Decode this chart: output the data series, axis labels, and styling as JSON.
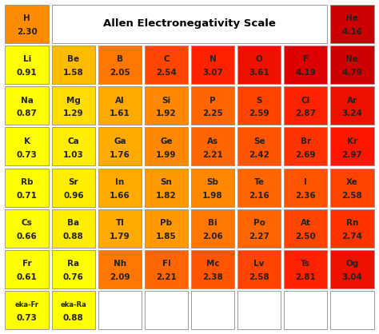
{
  "title": "Allen Electronegativity Scale",
  "cells": [
    {
      "symbol": "H",
      "value": "2.30",
      "row": 0,
      "col": 0,
      "color": "#FF8C00"
    },
    {
      "symbol": "He",
      "value": "4.16",
      "row": 0,
      "col": 7,
      "color": "#CC0000"
    },
    {
      "symbol": "Li",
      "value": "0.91",
      "row": 1,
      "col": 0,
      "color": "#FFFF00"
    },
    {
      "symbol": "Be",
      "value": "1.58",
      "row": 1,
      "col": 1,
      "color": "#FFBB00"
    },
    {
      "symbol": "B",
      "value": "2.05",
      "row": 1,
      "col": 2,
      "color": "#FF7700"
    },
    {
      "symbol": "C",
      "value": "2.54",
      "row": 1,
      "col": 3,
      "color": "#FF4500"
    },
    {
      "symbol": "N",
      "value": "3.07",
      "row": 1,
      "col": 4,
      "color": "#FF2200"
    },
    {
      "symbol": "O",
      "value": "3.61",
      "row": 1,
      "col": 5,
      "color": "#EE1100"
    },
    {
      "symbol": "F",
      "value": "4.19",
      "row": 1,
      "col": 6,
      "color": "#DD0000"
    },
    {
      "symbol": "Ne",
      "value": "4.79",
      "row": 1,
      "col": 7,
      "color": "#CC0000"
    },
    {
      "symbol": "Na",
      "value": "0.87",
      "row": 2,
      "col": 0,
      "color": "#FFFF00"
    },
    {
      "symbol": "Mg",
      "value": "1.29",
      "row": 2,
      "col": 1,
      "color": "#FFDD00"
    },
    {
      "symbol": "Al",
      "value": "1.61",
      "row": 2,
      "col": 2,
      "color": "#FFAA00"
    },
    {
      "symbol": "Si",
      "value": "1.92",
      "row": 2,
      "col": 3,
      "color": "#FF8800"
    },
    {
      "symbol": "P",
      "value": "2.25",
      "row": 2,
      "col": 4,
      "color": "#FF6600"
    },
    {
      "symbol": "S",
      "value": "2.59",
      "row": 2,
      "col": 5,
      "color": "#FF4400"
    },
    {
      "symbol": "Cl",
      "value": "2.87",
      "row": 2,
      "col": 6,
      "color": "#FF2200"
    },
    {
      "symbol": "Ar",
      "value": "3.24",
      "row": 2,
      "col": 7,
      "color": "#EE1100"
    },
    {
      "symbol": "K",
      "value": "0.73",
      "row": 3,
      "col": 0,
      "color": "#FFFF00"
    },
    {
      "symbol": "Ca",
      "value": "1.03",
      "row": 3,
      "col": 1,
      "color": "#FFEE00"
    },
    {
      "symbol": "Ga",
      "value": "1.76",
      "row": 3,
      "col": 2,
      "color": "#FFAA00"
    },
    {
      "symbol": "Ge",
      "value": "1.99",
      "row": 3,
      "col": 3,
      "color": "#FF8800"
    },
    {
      "symbol": "As",
      "value": "2.21",
      "row": 3,
      "col": 4,
      "color": "#FF6600"
    },
    {
      "symbol": "Se",
      "value": "2.42",
      "row": 3,
      "col": 5,
      "color": "#FF5500"
    },
    {
      "symbol": "Br",
      "value": "2.69",
      "row": 3,
      "col": 6,
      "color": "#FF3300"
    },
    {
      "symbol": "Kr",
      "value": "2.97",
      "row": 3,
      "col": 7,
      "color": "#FF1500"
    },
    {
      "symbol": "Rb",
      "value": "0.71",
      "row": 4,
      "col": 0,
      "color": "#FFFF00"
    },
    {
      "symbol": "Sr",
      "value": "0.96",
      "row": 4,
      "col": 1,
      "color": "#FFEE00"
    },
    {
      "symbol": "In",
      "value": "1.66",
      "row": 4,
      "col": 2,
      "color": "#FFAA00"
    },
    {
      "symbol": "Sn",
      "value": "1.82",
      "row": 4,
      "col": 3,
      "color": "#FF9900"
    },
    {
      "symbol": "Sb",
      "value": "1.98",
      "row": 4,
      "col": 4,
      "color": "#FF8800"
    },
    {
      "symbol": "Te",
      "value": "2.16",
      "row": 4,
      "col": 5,
      "color": "#FF6600"
    },
    {
      "symbol": "I",
      "value": "2.36",
      "row": 4,
      "col": 6,
      "color": "#FF5500"
    },
    {
      "symbol": "Xe",
      "value": "2.58",
      "row": 4,
      "col": 7,
      "color": "#FF4400"
    },
    {
      "symbol": "Cs",
      "value": "0.66",
      "row": 5,
      "col": 0,
      "color": "#FFFF00"
    },
    {
      "symbol": "Ba",
      "value": "0.88",
      "row": 5,
      "col": 1,
      "color": "#FFEE00"
    },
    {
      "symbol": "Tl",
      "value": "1.79",
      "row": 5,
      "col": 2,
      "color": "#FFAA00"
    },
    {
      "symbol": "Pb",
      "value": "1.85",
      "row": 5,
      "col": 3,
      "color": "#FF9900"
    },
    {
      "symbol": "Bi",
      "value": "2.06",
      "row": 5,
      "col": 4,
      "color": "#FF7700"
    },
    {
      "symbol": "Po",
      "value": "2.27",
      "row": 5,
      "col": 5,
      "color": "#FF6600"
    },
    {
      "symbol": "At",
      "value": "2.50",
      "row": 5,
      "col": 6,
      "color": "#FF4400"
    },
    {
      "symbol": "Rn",
      "value": "2.74",
      "row": 5,
      "col": 7,
      "color": "#FF3300"
    },
    {
      "symbol": "Fr",
      "value": "0.61",
      "row": 6,
      "col": 0,
      "color": "#FFFF00"
    },
    {
      "symbol": "Ra",
      "value": "0.76",
      "row": 6,
      "col": 1,
      "color": "#FFFF00"
    },
    {
      "symbol": "Nh",
      "value": "2.09",
      "row": 6,
      "col": 2,
      "color": "#FF7700"
    },
    {
      "symbol": "Fl",
      "value": "2.21",
      "row": 6,
      "col": 3,
      "color": "#FF6600"
    },
    {
      "symbol": "Mc",
      "value": "2.38",
      "row": 6,
      "col": 4,
      "color": "#FF5500"
    },
    {
      "symbol": "Lv",
      "value": "2.58",
      "row": 6,
      "col": 5,
      "color": "#FF4400"
    },
    {
      "symbol": "Ts",
      "value": "2.81",
      "row": 6,
      "col": 6,
      "color": "#FF2200"
    },
    {
      "symbol": "Og",
      "value": "3.04",
      "row": 6,
      "col": 7,
      "color": "#EE1100"
    },
    {
      "symbol": "eka-Fr",
      "value": "0.73",
      "row": 7,
      "col": 0,
      "color": "#FFFF00"
    },
    {
      "symbol": "eka-Ra",
      "value": "0.88",
      "row": 7,
      "col": 1,
      "color": "#FFFF00"
    }
  ],
  "empty_cells": [
    {
      "row": 7,
      "col": 2
    },
    {
      "row": 7,
      "col": 3
    },
    {
      "row": 7,
      "col": 4
    },
    {
      "row": 7,
      "col": 5
    },
    {
      "row": 7,
      "col": 6
    },
    {
      "row": 7,
      "col": 7
    }
  ],
  "border_color": "#999999",
  "text_color": "#222222",
  "background_color": "#FFFFFF",
  "n_rows": 8,
  "n_cols": 8
}
